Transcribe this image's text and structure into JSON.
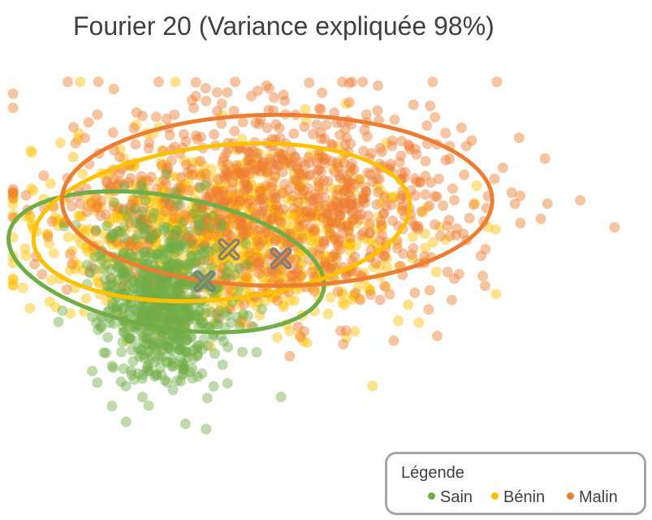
{
  "chart_data": {
    "type": "scatter",
    "title": "Fourier 20 (Variance expliquée 98%)",
    "xlabel": "",
    "ylabel": "",
    "grid": false,
    "legend": {
      "title": "Légende",
      "placement": "bottom-right",
      "entries": [
        "Sain",
        "Bénin",
        "Malin"
      ]
    },
    "series": [
      {
        "name": "Sain",
        "color": "#70ad47",
        "centroid_marker": "x",
        "cluster_center": [
          0.25,
          0.52
        ],
        "cluster_spread": [
          0.05,
          0.1
        ],
        "approx_points": 700,
        "ellipse": {
          "center": [
            0.255,
            0.43
          ],
          "radii": [
            0.49,
            0.3
          ],
          "rotation_deg": 10
        }
      },
      {
        "name": "Bénin",
        "color": "#ffc000",
        "centroid_marker": "x",
        "cluster_center": [
          0.34,
          0.37
        ],
        "cluster_spread": [
          0.14,
          0.1
        ],
        "approx_points": 1000,
        "ellipse": {
          "center": [
            0.34,
            0.34
          ],
          "radii": [
            0.58,
            0.35
          ],
          "rotation_deg": -6
        }
      },
      {
        "name": "Malin",
        "color": "#ed7d31",
        "centroid_marker": "x",
        "cluster_center": [
          0.43,
          0.3
        ],
        "cluster_spread": [
          0.16,
          0.12
        ],
        "approx_points": 2000,
        "ellipse": {
          "center": [
            0.425,
            0.29
          ],
          "radii": [
            0.66,
            0.39
          ],
          "rotation_deg": 0
        }
      }
    ]
  },
  "centroid_color": "#7f7f7f"
}
